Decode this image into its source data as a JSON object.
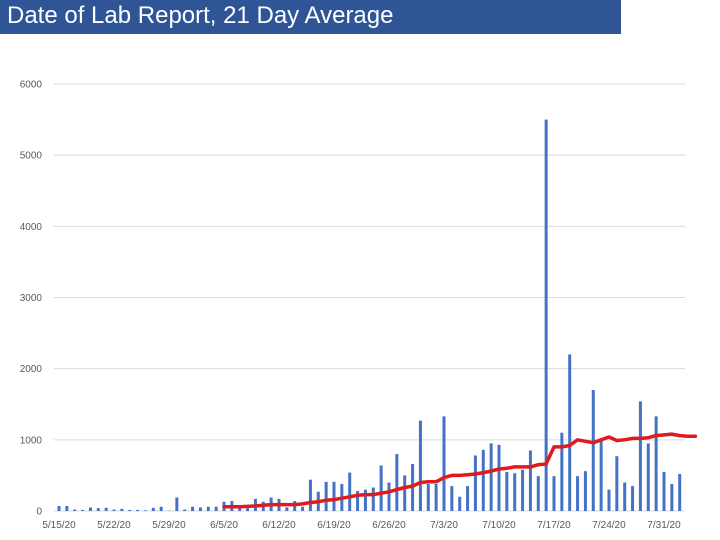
{
  "header": {
    "title": "Date of Lab Report, 21 Day Average"
  },
  "colors": {
    "title_bg": "#2f5597",
    "bars": "#4472c4",
    "line": "#e31a1c",
    "grid": "#d9d9d9",
    "text": "#595959"
  },
  "chart_data": {
    "type": "bar",
    "title": "Date of Lab Report, 21 Day Average",
    "xlabel": "",
    "ylabel": "",
    "ylim": [
      0,
      6000
    ],
    "yticks": [
      0,
      1000,
      2000,
      3000,
      4000,
      5000,
      6000
    ],
    "grid": true,
    "legend": "none",
    "x_start": "5/15/20",
    "x_ticks": [
      "5/15/20",
      "5/22/20",
      "5/29/20",
      "6/5/20",
      "6/12/20",
      "6/19/20",
      "6/26/20",
      "7/3/20",
      "7/10/20",
      "7/17/20",
      "7/24/20",
      "7/31/20"
    ],
    "series": [
      {
        "type": "bar",
        "values": [
          70,
          70,
          20,
          15,
          50,
          40,
          45,
          20,
          30,
          15,
          15,
          10,
          45,
          60,
          5,
          190,
          20,
          60,
          50,
          60,
          60,
          130,
          140,
          55,
          40,
          170,
          130,
          190,
          170,
          50,
          140,
          60,
          440,
          270,
          410,
          410,
          380,
          540,
          280,
          300,
          330,
          640,
          400,
          800,
          500,
          660,
          1270,
          380,
          380,
          1330,
          350,
          200,
          350,
          780,
          860,
          950,
          930,
          550,
          530,
          580,
          850,
          490,
          5500,
          490,
          1100,
          2200,
          490,
          560,
          1700,
          1000,
          300,
          770,
          400,
          350,
          1540,
          950,
          1330,
          550,
          380,
          520
        ]
      },
      {
        "type": "line",
        "start_index": 21,
        "values": [
          60,
          60,
          60,
          65,
          70,
          80,
          90,
          90,
          90,
          90,
          100,
          120,
          130,
          150,
          160,
          180,
          200,
          220,
          230,
          230,
          250,
          270,
          300,
          330,
          350,
          400,
          410,
          410,
          470,
          500,
          500,
          510,
          520,
          540,
          560,
          590,
          600,
          620,
          620,
          620,
          650,
          660,
          900,
          900,
          920,
          1000,
          980,
          960,
          1000,
          1040,
          990,
          1000,
          1020,
          1020,
          1030,
          1060,
          1070,
          1080,
          1060,
          1050,
          1050
        ]
      }
    ]
  }
}
